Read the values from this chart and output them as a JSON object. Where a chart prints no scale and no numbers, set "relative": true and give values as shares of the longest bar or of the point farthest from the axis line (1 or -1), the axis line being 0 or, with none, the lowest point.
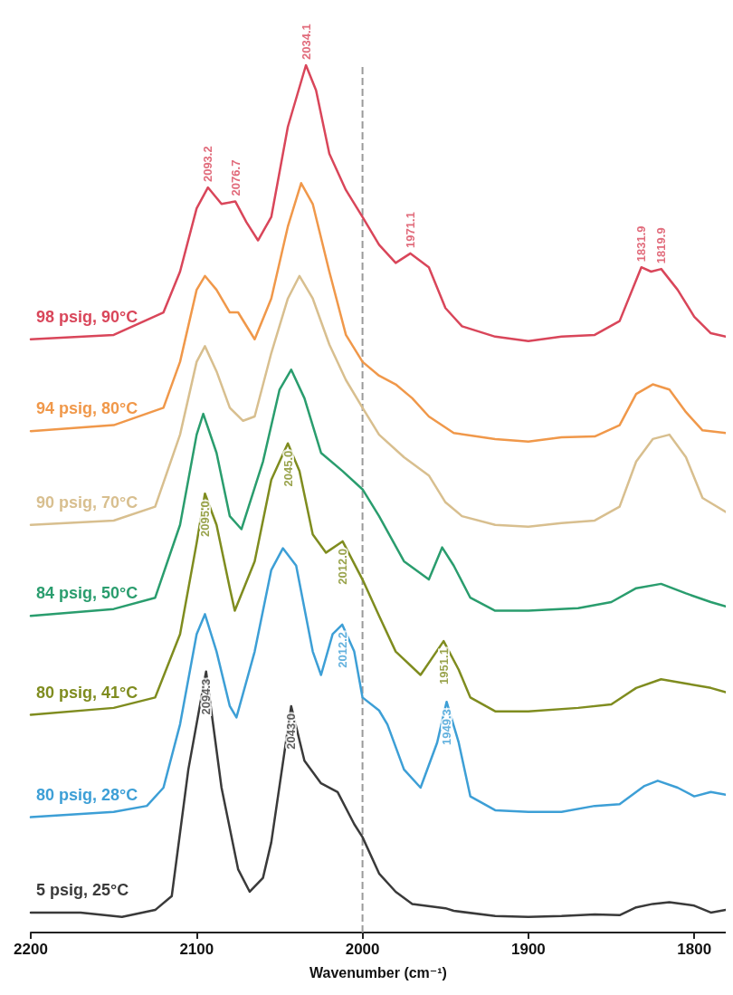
{
  "chart_data": {
    "type": "line",
    "relative": true,
    "xlabel": "Wavenumber (cm⁻¹)",
    "xlim": [
      2200,
      1781
    ],
    "xticks": [
      2200,
      2100,
      2000,
      1900,
      1800
    ],
    "ref_lines": [
      {
        "axis": "x",
        "value": 2000,
        "color": "#9a9a9a",
        "line_style": "dashed"
      }
    ],
    "series": [
      {
        "name": "98 psig, 90°C",
        "color": "#d9465a",
        "x": [
          2200,
          2150,
          2120,
          2110,
          2100,
          2093.2,
          2085,
          2076.7,
          2070,
          2063,
          2055,
          2045,
          2034.1,
          2028,
          2020,
          2010,
          2000,
          1990,
          1980,
          1971.1,
          1960,
          1950,
          1940,
          1920,
          1900,
          1880,
          1860,
          1845,
          1831.9,
          1826,
          1819.9,
          1810,
          1800,
          1790,
          1781
        ],
        "values": [
          0.684,
          0.689,
          0.715,
          0.762,
          0.835,
          0.859,
          0.84,
          0.843,
          0.819,
          0.798,
          0.825,
          0.929,
          1,
          0.971,
          0.898,
          0.856,
          0.825,
          0.793,
          0.772,
          0.783,
          0.767,
          0.72,
          0.699,
          0.687,
          0.682,
          0.687,
          0.689,
          0.705,
          0.767,
          0.762,
          0.765,
          0.741,
          0.71,
          0.691,
          0.687
        ]
      },
      {
        "name": "94 psig, 80°C",
        "color": "#f0984a",
        "x": [
          2200,
          2150,
          2120,
          2110,
          2100,
          2095,
          2088,
          2080,
          2075,
          2065,
          2055,
          2045,
          2037,
          2030,
          2020,
          2010,
          2000,
          1990,
          1980,
          1970,
          1960,
          1945,
          1920,
          1900,
          1880,
          1860,
          1845,
          1835,
          1825,
          1815,
          1805,
          1795,
          1781
        ],
        "values": [
          0.578,
          0.585,
          0.605,
          0.658,
          0.741,
          0.757,
          0.741,
          0.715,
          0.715,
          0.684,
          0.731,
          0.814,
          0.864,
          0.84,
          0.762,
          0.689,
          0.658,
          0.642,
          0.632,
          0.616,
          0.595,
          0.576,
          0.569,
          0.566,
          0.571,
          0.572,
          0.585,
          0.621,
          0.632,
          0.626,
          0.6,
          0.579,
          0.576
        ]
      },
      {
        "name": "90 psig, 70°C",
        "color": "#d8bf8f",
        "x": [
          2200,
          2150,
          2125,
          2110,
          2100,
          2095,
          2088,
          2080,
          2072,
          2065,
          2055,
          2045,
          2038,
          2030,
          2020,
          2010,
          2000,
          1990,
          1975,
          1960,
          1950,
          1940,
          1920,
          1900,
          1880,
          1860,
          1845,
          1835,
          1825,
          1815,
          1805,
          1795,
          1781
        ],
        "values": [
          0.47,
          0.475,
          0.491,
          0.574,
          0.658,
          0.676,
          0.647,
          0.605,
          0.59,
          0.595,
          0.668,
          0.731,
          0.757,
          0.731,
          0.678,
          0.637,
          0.605,
          0.574,
          0.548,
          0.527,
          0.496,
          0.48,
          0.47,
          0.468,
          0.472,
          0.475,
          0.491,
          0.543,
          0.569,
          0.574,
          0.548,
          0.501,
          0.485
        ]
      },
      {
        "name": "84 psig, 50°C",
        "color": "#2a9d6e",
        "x": [
          2200,
          2150,
          2125,
          2110,
          2100,
          2096,
          2088,
          2080,
          2073,
          2060,
          2050,
          2043,
          2035,
          2025,
          2012,
          2000,
          1990,
          1975,
          1960,
          1952,
          1945,
          1935,
          1920,
          1900,
          1870,
          1850,
          1835,
          1820,
          1805,
          1790,
          1781
        ],
        "values": [
          0.365,
          0.373,
          0.386,
          0.47,
          0.574,
          0.598,
          0.553,
          0.48,
          0.465,
          0.543,
          0.626,
          0.649,
          0.616,
          0.553,
          0.532,
          0.511,
          0.48,
          0.428,
          0.407,
          0.444,
          0.423,
          0.386,
          0.371,
          0.371,
          0.374,
          0.381,
          0.397,
          0.402,
          0.391,
          0.381,
          0.376
        ]
      },
      {
        "name": "80 psig, 41°C",
        "color": "#7f8c1f",
        "x": [
          2200,
          2150,
          2125,
          2110,
          2100,
          2095,
          2088,
          2080,
          2077,
          2065,
          2055,
          2045,
          2038,
          2030,
          2022,
          2012,
          2000,
          1990,
          1980,
          1965,
          1951.1,
          1942,
          1935,
          1920,
          1900,
          1870,
          1850,
          1835,
          1820,
          1805,
          1790,
          1781
        ],
        "values": [
          0.251,
          0.259,
          0.271,
          0.344,
          0.449,
          0.506,
          0.47,
          0.397,
          0.371,
          0.428,
          0.522,
          0.564,
          0.532,
          0.459,
          0.438,
          0.451,
          0.407,
          0.365,
          0.324,
          0.297,
          0.336,
          0.303,
          0.271,
          0.255,
          0.255,
          0.259,
          0.263,
          0.282,
          0.292,
          0.287,
          0.282,
          0.277
        ]
      },
      {
        "name": "80 psig, 28°C",
        "color": "#3d9fd6",
        "x": [
          2200,
          2150,
          2130,
          2120,
          2110,
          2100,
          2095,
          2088,
          2080,
          2076,
          2065,
          2055,
          2048,
          2040,
          2030,
          2025,
          2018,
          2012.2,
          2005,
          2000,
          1990,
          1985,
          1975,
          1965,
          1955,
          1949.3,
          1942,
          1935,
          1920,
          1900,
          1880,
          1860,
          1845,
          1830,
          1822,
          1810,
          1800,
          1790,
          1781
        ],
        "values": [
          0.133,
          0.139,
          0.146,
          0.167,
          0.24,
          0.344,
          0.367,
          0.324,
          0.261,
          0.248,
          0.324,
          0.418,
          0.443,
          0.423,
          0.324,
          0.297,
          0.344,
          0.355,
          0.324,
          0.271,
          0.256,
          0.24,
          0.188,
          0.167,
          0.219,
          0.266,
          0.219,
          0.157,
          0.141,
          0.139,
          0.139,
          0.146,
          0.148,
          0.169,
          0.175,
          0.167,
          0.157,
          0.162,
          0.159
        ]
      },
      {
        "name": "5 psig, 25°C",
        "color": "#3a3a3a",
        "x": [
          2200,
          2170,
          2145,
          2125,
          2115,
          2105,
          2094.3,
          2085,
          2075,
          2068,
          2060,
          2055,
          2043,
          2035,
          2025,
          2015,
          2005,
          2000,
          1990,
          1980,
          1970,
          1950,
          1945,
          1920,
          1900,
          1880,
          1860,
          1845,
          1835,
          1825,
          1815,
          1800,
          1790,
          1781
        ],
        "values": [
          0.023,
          0.023,
          0.018,
          0.026,
          0.042,
          0.188,
          0.301,
          0.167,
          0.073,
          0.047,
          0.063,
          0.104,
          0.261,
          0.198,
          0.172,
          0.162,
          0.125,
          0.11,
          0.068,
          0.047,
          0.033,
          0.028,
          0.025,
          0.019,
          0.018,
          0.019,
          0.021,
          0.02,
          0.029,
          0.033,
          0.035,
          0.031,
          0.023,
          0.026
        ]
      }
    ],
    "annotations": [
      {
        "text": "2093.2",
        "x": 2093.2,
        "y": 0.859
      },
      {
        "text": "2076.7",
        "x": 2076.7,
        "y": 0.843
      },
      {
        "text": "2034.1",
        "x": 2034.1,
        "y": 1
      },
      {
        "text": "1971.1",
        "x": 1971.1,
        "y": 0.783
      },
      {
        "text": "1831.9",
        "x": 1831.9,
        "y": 0.767
      },
      {
        "text": "1819.9",
        "x": 1819.9,
        "y": 0.765
      },
      {
        "text": "2095.0",
        "x": 2095,
        "y": 0.506
      },
      {
        "text": "2045.0",
        "x": 2045,
        "y": 0.564
      },
      {
        "text": "2012.0",
        "x": 2012,
        "y": 0.451
      },
      {
        "text": "1951.1",
        "x": 1951.1,
        "y": 0.336
      },
      {
        "text": "2012.2",
        "x": 2012.2,
        "y": 0.355
      },
      {
        "text": "1949.3",
        "x": 1949.3,
        "y": 0.266
      },
      {
        "text": "2094.3",
        "x": 2094.3,
        "y": 0.301
      },
      {
        "text": "2043.0",
        "x": 2043,
        "y": 0.261
      }
    ]
  }
}
